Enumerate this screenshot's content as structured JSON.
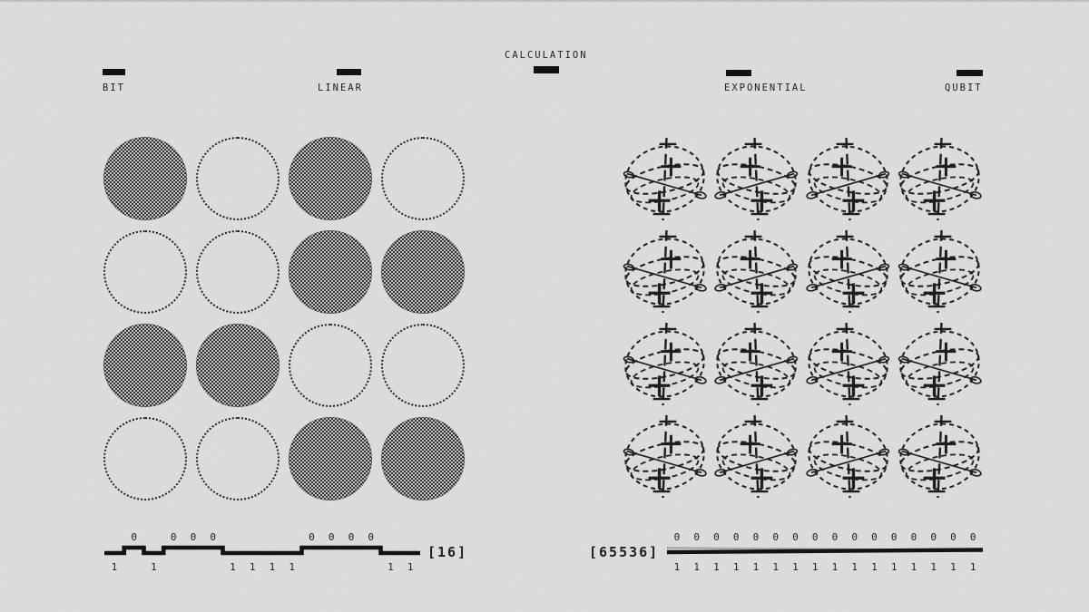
{
  "colors": {
    "background": "#dcdcdc",
    "ink": "#1b1b1b",
    "dither_dark": "#2e2e2e",
    "dither_light": "#c6c6c6"
  },
  "title": "CALCULATION",
  "labels": {
    "bit": "BIT",
    "linear": "LINEAR",
    "exponential": "EXPONENTIAL",
    "qubit": "QUBIT"
  },
  "bit_section": {
    "grid_rows": 4,
    "grid_cols": 4,
    "filled_cells": [
      1,
      0,
      1,
      0,
      0,
      0,
      1,
      1,
      1,
      1,
      0,
      0,
      0,
      0,
      1,
      1
    ],
    "meter_bits": [
      1,
      0,
      1,
      0,
      0,
      0,
      1,
      1,
      1,
      1,
      0,
      0,
      0,
      0,
      1,
      1
    ],
    "zero_char": "0",
    "one_char": "1",
    "count_label": "[16]",
    "states_value": "16"
  },
  "qubit_section": {
    "grid_rows": 4,
    "grid_cols": 4,
    "sphere_count": 16,
    "meter_top": [
      "0",
      "0",
      "0",
      "0",
      "0",
      "0",
      "0",
      "0",
      "0",
      "0",
      "0",
      "0",
      "0",
      "0",
      "0",
      "0"
    ],
    "meter_bottom": [
      "1",
      "1",
      "1",
      "1",
      "1",
      "1",
      "1",
      "1",
      "1",
      "1",
      "1",
      "1",
      "1",
      "1",
      "1",
      "1"
    ],
    "count_label": "[65536]",
    "states_value": "65536"
  }
}
